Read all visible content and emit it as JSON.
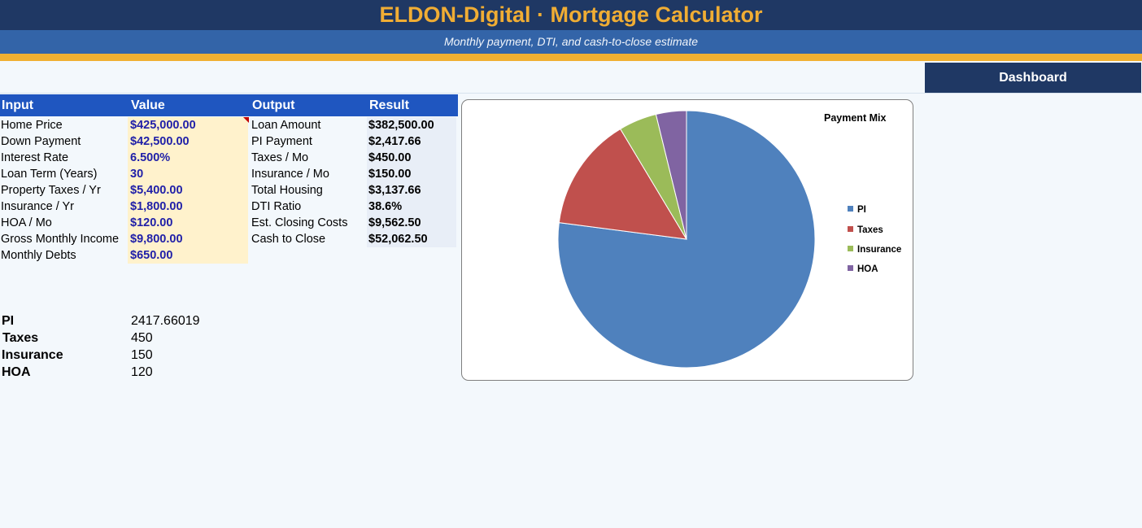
{
  "header": {
    "title": "ELDON-Digital  ·  Mortgage Calculator",
    "subtitle": "Monthly payment, DTI, and cash-to-close estimate",
    "dashboard_button": "Dashboard"
  },
  "table": {
    "headers": {
      "input": "Input",
      "value": "Value",
      "output": "Output",
      "result": "Result"
    },
    "inputs": [
      {
        "label": "Home Price",
        "value": "$425,000.00"
      },
      {
        "label": "Down Payment",
        "value": "$42,500.00"
      },
      {
        "label": "Interest Rate",
        "value": "6.500%"
      },
      {
        "label": "Loan Term (Years)",
        "value": "30"
      },
      {
        "label": "Property Taxes / Yr",
        "value": "$5,400.00"
      },
      {
        "label": "Insurance / Yr",
        "value": "$1,800.00"
      },
      {
        "label": "HOA / Mo",
        "value": "$120.00"
      },
      {
        "label": "Gross Monthly Income",
        "value": "$9,800.00"
      },
      {
        "label": "Monthly Debts",
        "value": "$650.00"
      }
    ],
    "outputs": [
      {
        "label": "Loan Amount",
        "value": "$382,500.00"
      },
      {
        "label": "PI Payment",
        "value": "$2,417.66"
      },
      {
        "label": "Taxes / Mo",
        "value": "$450.00"
      },
      {
        "label": "Insurance / Mo",
        "value": "$150.00"
      },
      {
        "label": "Total Housing",
        "value": "$3,137.66"
      },
      {
        "label": "DTI Ratio",
        "value": "38.6%"
      },
      {
        "label": "Est. Closing Costs",
        "value": "$9,562.50"
      },
      {
        "label": "Cash to Close",
        "value": "$52,062.50"
      }
    ]
  },
  "mix_table": [
    {
      "label": "PI",
      "value": "2417.66019"
    },
    {
      "label": "Taxes",
      "value": "450"
    },
    {
      "label": "Insurance",
      "value": "150"
    },
    {
      "label": "HOA",
      "value": "120"
    }
  ],
  "colors": {
    "title_bg": "#1f3864",
    "accent_gold": "#f0ad34",
    "header_blue": "#1f56c0",
    "input_fill": "#fff2cc",
    "input_text": "#1f1fa8"
  },
  "chart_data": {
    "type": "pie",
    "title": "Payment Mix",
    "legend_position": "right",
    "categories": [
      "PI",
      "Taxes",
      "Insurance",
      "HOA"
    ],
    "values": [
      2417.66019,
      450,
      150,
      120
    ],
    "colors": [
      "#4f81bd",
      "#c0504d",
      "#9bbb59",
      "#8064a2"
    ]
  }
}
